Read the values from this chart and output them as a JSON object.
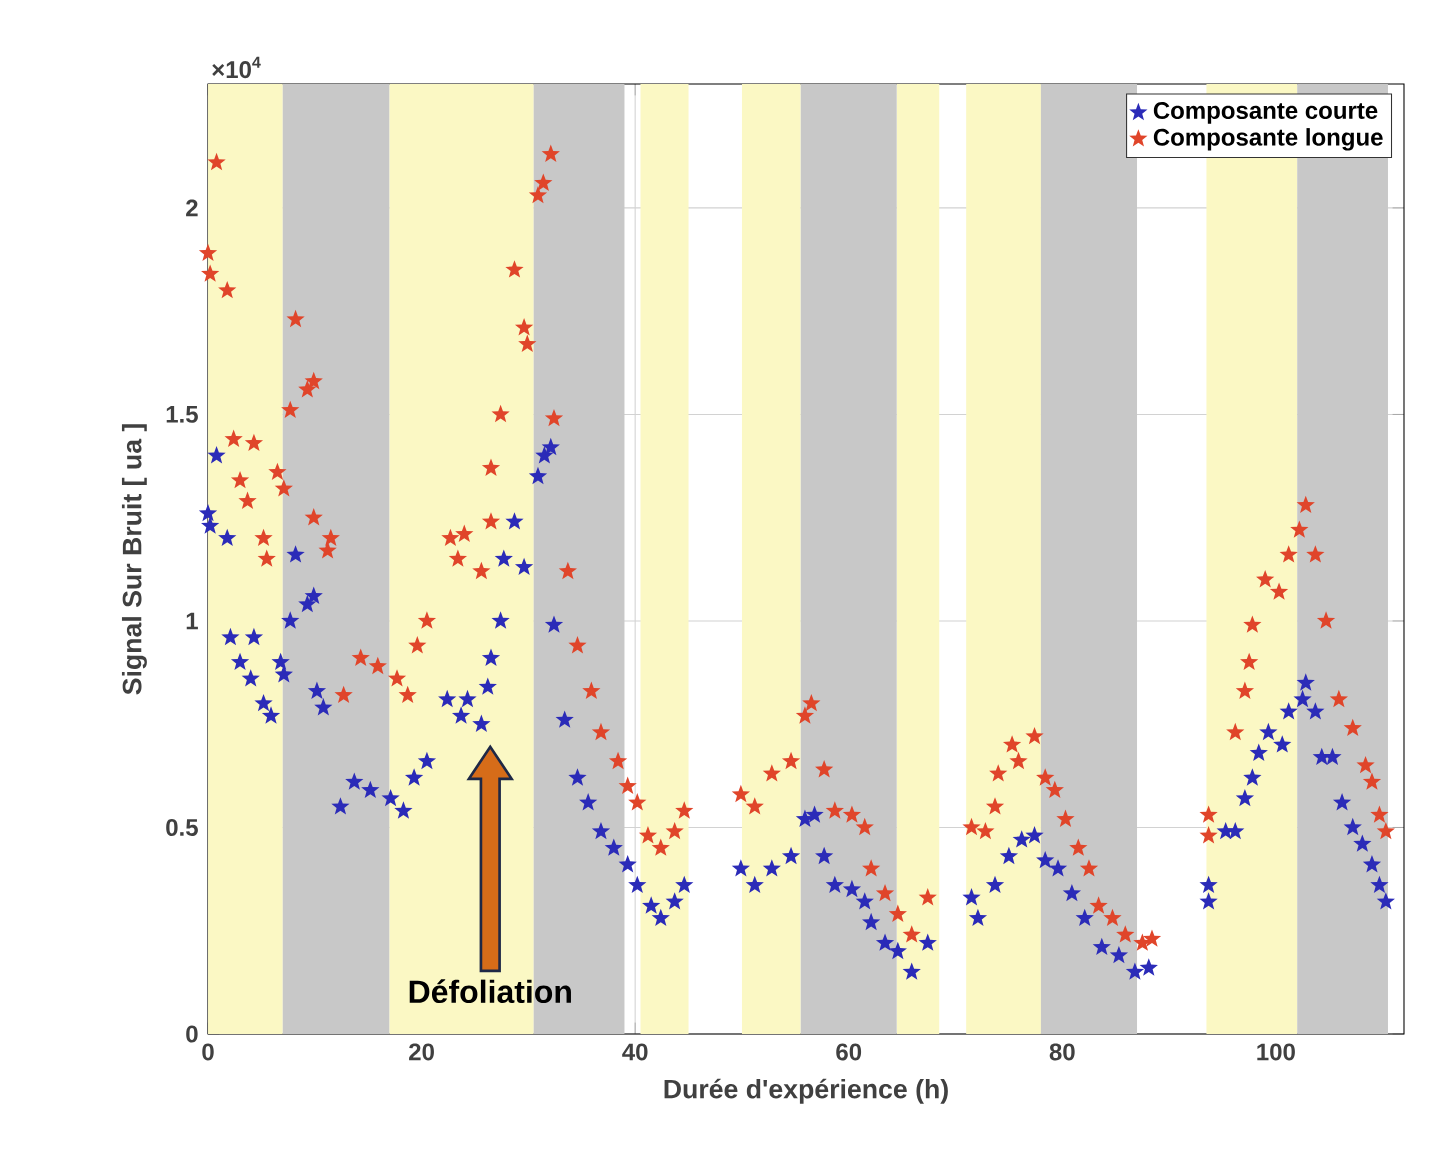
{
  "chart_data": {
    "type": "scatter",
    "xlabel": "Durée d'expérience (h)",
    "ylabel": "Signal Sur Bruit [ ua ]",
    "xlim": [
      0,
      112
    ],
    "ylim": [
      0,
      2.3
    ],
    "xticks": [
      0,
      20,
      40,
      60,
      80,
      100
    ],
    "yticks": [
      0,
      0.5,
      1,
      1.5,
      2
    ],
    "grid": true,
    "legend": "top right",
    "marker": "star",
    "annotations": [
      "×10$^{4}$",
      "Défoliation"
    ],
    "bands": [
      {
        "axis": "x",
        "from": 0,
        "to": 7,
        "color": "#fbf8c4"
      },
      {
        "axis": "x",
        "from": 7,
        "to": 17,
        "color": "#c8c8c8"
      },
      {
        "axis": "x",
        "from": 17,
        "to": 30.5,
        "color": "#fbf8c4"
      },
      {
        "axis": "x",
        "from": 30.5,
        "to": 39,
        "color": "#c8c8c8"
      },
      {
        "axis": "x",
        "from": 40.5,
        "to": 45,
        "color": "#fbf8c4"
      },
      {
        "axis": "x",
        "from": 50,
        "to": 55.5,
        "color": "#fbf8c4"
      },
      {
        "axis": "x",
        "from": 55.5,
        "to": 64.5,
        "color": "#c8c8c8"
      },
      {
        "axis": "x",
        "from": 64.5,
        "to": 68.5,
        "color": "#fbf8c4"
      },
      {
        "axis": "x",
        "from": 71,
        "to": 78,
        "color": "#fbf8c4"
      },
      {
        "axis": "x",
        "from": 78,
        "to": 87,
        "color": "#c8c8c8"
      },
      {
        "axis": "x",
        "from": 93.5,
        "to": 102,
        "color": "#fbf8c4"
      },
      {
        "axis": "x",
        "from": 102,
        "to": 110.5,
        "color": "#c8c8c8"
      }
    ],
    "series": [
      {
        "name": "Composante courte",
        "color": "#2b2bb8",
        "x": [
          0,
          0.2,
          1.8,
          0.8,
          2.1,
          4.3,
          3.0,
          4.0,
          5.2,
          5.9,
          6.8,
          7.1,
          8.2,
          7.7,
          9.3,
          9.9,
          10.2,
          10.8,
          12.4,
          13.7,
          15.2,
          17.1,
          18.3,
          19.3,
          20.5,
          22.4,
          23.7,
          24.3,
          25.6,
          26.2,
          26.5,
          27.4,
          27.7,
          28.7,
          29.6,
          30.9,
          31.5,
          32.1,
          32.4,
          33.4,
          34.6,
          35.6,
          36.8,
          38.0,
          39.3,
          40.2,
          41.5,
          42.4,
          43.7,
          44.6,
          49.9,
          51.2,
          52.8,
          54.6,
          55.9,
          56.8,
          57.7,
          58.7,
          60.3,
          61.5,
          62.1,
          63.4,
          64.6,
          65.9,
          67.4,
          71.5,
          72.1,
          73.7,
          75.0,
          76.2,
          77.4,
          78.4,
          79.6,
          80.9,
          82.1,
          83.7,
          85.3,
          86.8,
          88.1,
          93.7,
          93.7,
          95.3,
          96.2,
          97.1,
          97.8,
          98.4,
          99.3,
          100.6,
          101.2,
          102.5,
          102.8,
          103.7,
          104.3,
          105.3,
          106.2,
          107.2,
          108.1,
          109.0,
          109.7,
          110.3
        ],
        "values": [
          1.26,
          1.23,
          1.2,
          1.4,
          0.96,
          0.96,
          0.9,
          0.86,
          0.8,
          0.77,
          0.9,
          0.87,
          1.16,
          1.0,
          1.04,
          1.06,
          0.83,
          0.79,
          0.55,
          0.61,
          0.59,
          0.57,
          0.54,
          0.62,
          0.66,
          0.81,
          0.77,
          0.81,
          0.75,
          0.84,
          0.91,
          1.0,
          1.15,
          1.24,
          1.13,
          1.35,
          1.4,
          1.42,
          0.99,
          0.76,
          0.62,
          0.56,
          0.49,
          0.45,
          0.41,
          0.36,
          0.31,
          0.28,
          0.32,
          0.36,
          0.4,
          0.36,
          0.4,
          0.43,
          0.52,
          0.53,
          0.43,
          0.36,
          0.35,
          0.32,
          0.27,
          0.22,
          0.2,
          0.15,
          0.22,
          0.33,
          0.28,
          0.36,
          0.43,
          0.47,
          0.48,
          0.42,
          0.4,
          0.34,
          0.28,
          0.21,
          0.19,
          0.15,
          0.16,
          0.36,
          0.32,
          0.49,
          0.49,
          0.57,
          0.62,
          0.68,
          0.73,
          0.7,
          0.78,
          0.81,
          0.85,
          0.78,
          0.67,
          0.67,
          0.56,
          0.5,
          0.46,
          0.41,
          0.36,
          0.32
        ]
      },
      {
        "name": "Composante longue",
        "color": "#e0452a",
        "x": [
          0.8,
          0,
          0.2,
          1.8,
          8.2,
          7.7,
          9.3,
          9.9,
          2.4,
          4.3,
          3.0,
          3.7,
          5.2,
          5.5,
          6.5,
          7.1,
          9.9,
          11.5,
          11.2,
          12.7,
          14.3,
          15.9,
          17.7,
          18.7,
          19.6,
          20.5,
          22.7,
          24.0,
          23.4,
          25.6,
          26.5,
          26.5,
          27.4,
          28.7,
          29.6,
          29.9,
          30.9,
          31.4,
          32.1,
          32.4,
          33.7,
          34.6,
          35.9,
          36.8,
          38.4,
          39.3,
          40.2,
          41.2,
          42.4,
          43.7,
          44.6,
          49.9,
          51.2,
          52.8,
          54.6,
          55.9,
          56.5,
          57.7,
          58.7,
          60.3,
          61.5,
          62.1,
          63.4,
          64.6,
          65.9,
          67.4,
          71.5,
          72.8,
          73.7,
          74.0,
          75.3,
          75.9,
          77.4,
          78.4,
          79.3,
          80.3,
          81.5,
          82.5,
          83.4,
          84.7,
          85.9,
          87.5,
          88.4,
          93.7,
          93.7,
          96.2,
          97.1,
          97.5,
          97.8,
          99.0,
          100.3,
          101.2,
          102.2,
          102.8,
          103.7,
          104.7,
          105.9,
          107.2,
          108.4,
          109.0,
          109.7,
          110.3
        ],
        "values": [
          2.11,
          1.89,
          1.84,
          1.8,
          1.73,
          1.51,
          1.56,
          1.58,
          1.44,
          1.43,
          1.34,
          1.29,
          1.2,
          1.15,
          1.36,
          1.32,
          1.25,
          1.2,
          1.17,
          0.82,
          0.91,
          0.89,
          0.86,
          0.82,
          0.94,
          1.0,
          1.2,
          1.21,
          1.15,
          1.12,
          1.37,
          1.24,
          1.5,
          1.85,
          1.71,
          1.67,
          2.03,
          2.06,
          2.13,
          1.49,
          1.12,
          0.94,
          0.83,
          0.73,
          0.66,
          0.6,
          0.56,
          0.48,
          0.45,
          0.49,
          0.54,
          0.58,
          0.55,
          0.63,
          0.66,
          0.77,
          0.8,
          0.64,
          0.54,
          0.53,
          0.5,
          0.4,
          0.34,
          0.29,
          0.24,
          0.33,
          0.5,
          0.49,
          0.55,
          0.63,
          0.7,
          0.66,
          0.72,
          0.62,
          0.59,
          0.52,
          0.45,
          0.4,
          0.31,
          0.28,
          0.24,
          0.22,
          0.23,
          0.53,
          0.48,
          0.73,
          0.83,
          0.9,
          0.99,
          1.1,
          1.07,
          1.16,
          1.22,
          1.28,
          1.16,
          1.0,
          0.81,
          0.74,
          0.65,
          0.61,
          0.53,
          0.49
        ]
      }
    ]
  }
}
